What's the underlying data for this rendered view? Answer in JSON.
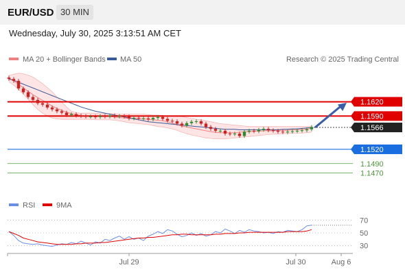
{
  "header": {
    "symbol": "EUR/USD",
    "timeframe": "30 MIN"
  },
  "datetime": "Wednesday, July 30, 2025 3:13:51 AM CET",
  "legend": {
    "bollinger_label": "MA 20 + Bollinger Bands",
    "ma50_label": "MA 50",
    "credit": "Research © 2025 Trading Central",
    "rsi_label": "RSI",
    "rsi_ma_label": "9MA"
  },
  "colors": {
    "bollinger": "#f08080",
    "bollinger_fill": "#fde0e0",
    "ma50": "#3a5a98",
    "resistance": "#e00000",
    "current": "#222222",
    "support_strong": "#1a6ee0",
    "support_weak": "#4a9a3a",
    "candle_up": "#2e8b2e",
    "candle_down": "#cc2222",
    "rsi": "#6a8ee8",
    "rsi_ma": "#e00000",
    "arrow": "#3a5ea8"
  },
  "chart_data": [
    {
      "type": "candlestick",
      "ylim": [
        1.1445,
        1.169
      ],
      "x_ticks": [
        "Jul 29",
        "Jul 30",
        "Aug 6"
      ],
      "levels": [
        {
          "value": "1.1620",
          "kind": "resistance"
        },
        {
          "value": "1.1590",
          "kind": "resistance"
        },
        {
          "value": "1.1566",
          "kind": "current"
        },
        {
          "value": "1.1520",
          "kind": "support_strong"
        },
        {
          "value": "1.1490",
          "kind": "support_weak"
        },
        {
          "value": "1.1470",
          "kind": "support_weak"
        }
      ],
      "close": [
        1.1668,
        1.1664,
        1.1648,
        1.164,
        1.163,
        1.1624,
        1.1617,
        1.1614,
        1.1608,
        1.1604,
        1.16,
        1.1597,
        1.1592,
        1.1594,
        1.1591,
        1.159,
        1.1589,
        1.1589,
        1.1588,
        1.159,
        1.1589,
        1.1591,
        1.1589,
        1.159,
        1.1589,
        1.1585,
        1.1586,
        1.1585,
        1.1585,
        1.1583,
        1.1586,
        1.1588,
        1.1584,
        1.158,
        1.1579,
        1.1574,
        1.157,
        1.1575,
        1.1578,
        1.1579,
        1.1574,
        1.1567,
        1.1563,
        1.1559,
        1.1559,
        1.1553,
        1.1552,
        1.1553,
        1.1548,
        1.1557,
        1.1559,
        1.1558,
        1.1561,
        1.1563,
        1.156,
        1.1559,
        1.1557,
        1.1556,
        1.1557,
        1.1558,
        1.1559,
        1.156,
        1.1562,
        1.1567
      ],
      "ma20": [
        1.167,
        1.1664,
        1.1657,
        1.1649,
        1.1642,
        1.1635,
        1.1629,
        1.1623,
        1.1617,
        1.1611,
        1.1606,
        1.1602,
        1.1598,
        1.1595,
        1.1593,
        1.1591,
        1.159,
        1.159,
        1.159,
        1.1589,
        1.1589,
        1.1589,
        1.1588,
        1.1587,
        1.1586,
        1.1585,
        1.1585,
        1.1585,
        1.1584,
        1.1583,
        1.1582,
        1.1581,
        1.158,
        1.1578,
        1.1575,
        1.1572,
        1.1569,
        1.1567,
        1.1565,
        1.1563,
        1.1561,
        1.1559,
        1.1557,
        1.1556,
        1.1555,
        1.1555,
        1.1555,
        1.1555,
        1.1556,
        1.1557,
        1.1557,
        1.1558,
        1.1558,
        1.1559,
        1.1559,
        1.1559,
        1.156,
        1.156,
        1.156,
        1.1561,
        1.1561,
        1.1562,
        1.1563,
        1.1564
      ],
      "ma50": [
        1.1668,
        1.1665,
        1.1661,
        1.1657,
        1.1653,
        1.1649,
        1.1645,
        1.1641,
        1.1637,
        1.1633,
        1.1629,
        1.1625,
        1.1621,
        1.1617,
        1.1613,
        1.1609,
        1.1606,
        1.1603,
        1.16,
        1.1598,
        1.1596,
        1.1594,
        1.1592,
        1.159,
        1.1588,
        1.1586,
        1.1584,
        1.1582,
        1.158,
        1.1578,
        1.1577,
        1.1576,
        1.1575,
        1.1574,
        1.1573,
        1.1572,
        1.1571,
        1.157,
        1.1569,
        1.1568,
        1.1567,
        1.1566,
        1.1565,
        1.1564,
        1.1563,
        1.1562,
        1.1562,
        1.1562,
        1.1561,
        1.1561,
        1.1561,
        1.1561,
        1.1561,
        1.1561,
        1.1561,
        1.1561,
        1.1561,
        1.1562,
        1.1562,
        1.1563,
        1.1563,
        1.1564,
        1.1565,
        1.1566
      ],
      "bb_upper": [
        1.1675,
        1.1678,
        1.168,
        1.1679,
        1.1676,
        1.1672,
        1.1665,
        1.1658,
        1.165,
        1.1641,
        1.163,
        1.1619,
        1.1609,
        1.16,
        1.1597,
        1.1596,
        1.1596,
        1.1596,
        1.1596,
        1.1595,
        1.1595,
        1.1595,
        1.1595,
        1.1594,
        1.1594,
        1.1594,
        1.1594,
        1.1594,
        1.1594,
        1.1593,
        1.1592,
        1.1592,
        1.1591,
        1.159,
        1.159,
        1.159,
        1.1589,
        1.1587,
        1.1585,
        1.1583,
        1.1582,
        1.158,
        1.1578,
        1.1576,
        1.1574,
        1.1573,
        1.1572,
        1.1571,
        1.157,
        1.1569,
        1.1568,
        1.1568,
        1.1568,
        1.1568,
        1.1568,
        1.1568,
        1.1568,
        1.1568,
        1.1568,
        1.1568,
        1.1568,
        1.1568,
        1.1568,
        1.1569
      ],
      "bb_lower": [
        1.1662,
        1.1655,
        1.1646,
        1.1636,
        1.1625,
        1.1614,
        1.1604,
        1.1596,
        1.159,
        1.1586,
        1.1584,
        1.1583,
        1.1583,
        1.1583,
        1.1583,
        1.1583,
        1.1583,
        1.1583,
        1.1582,
        1.1582,
        1.1582,
        1.1582,
        1.1581,
        1.158,
        1.1578,
        1.1576,
        1.1575,
        1.1574,
        1.1573,
        1.1572,
        1.157,
        1.1568,
        1.1567,
        1.1565,
        1.1563,
        1.156,
        1.1556,
        1.1553,
        1.155,
        1.1548,
        1.1546,
        1.1544,
        1.1543,
        1.1542,
        1.1542,
        1.1542,
        1.1543,
        1.1544,
        1.1545,
        1.1546,
        1.1547,
        1.1548,
        1.1549,
        1.155,
        1.1551,
        1.1552,
        1.1552,
        1.1553,
        1.1553,
        1.1554,
        1.1554,
        1.1554,
        1.1555,
        1.1556
      ],
      "forecast_arrow": {
        "from": 1.1566,
        "to": 1.1618
      }
    },
    {
      "type": "line",
      "title": "RSI",
      "ylim": [
        20,
        80
      ],
      "y_ticks": [
        "70",
        "50",
        "30"
      ],
      "rsi": [
        52,
        46,
        38,
        34,
        33,
        32,
        33,
        31,
        30,
        29,
        31,
        33,
        32,
        35,
        33,
        37,
        34,
        31,
        36,
        34,
        40,
        38,
        42,
        45,
        40,
        44,
        40,
        42,
        38,
        45,
        48,
        52,
        49,
        55,
        53,
        48,
        44,
        46,
        50,
        46,
        49,
        45,
        47,
        52,
        50,
        56,
        53,
        49,
        54,
        51,
        55,
        53,
        52,
        50,
        51,
        49,
        52,
        51,
        54,
        53,
        52,
        55,
        61,
        62
      ],
      "rsi_ma": [
        52,
        49,
        46,
        42,
        40,
        38,
        36,
        35,
        34,
        33,
        32,
        32,
        32,
        32,
        33,
        33,
        34,
        34,
        34,
        35,
        35,
        36,
        37,
        38,
        39,
        40,
        41,
        42,
        42,
        43,
        43,
        44,
        45,
        46,
        47,
        47,
        48,
        48,
        47,
        47,
        47,
        47,
        47,
        48,
        48,
        49,
        49,
        49,
        50,
        50,
        51,
        51,
        51,
        51,
        51,
        51,
        51,
        51,
        52,
        52,
        52,
        52,
        53,
        55
      ]
    }
  ]
}
